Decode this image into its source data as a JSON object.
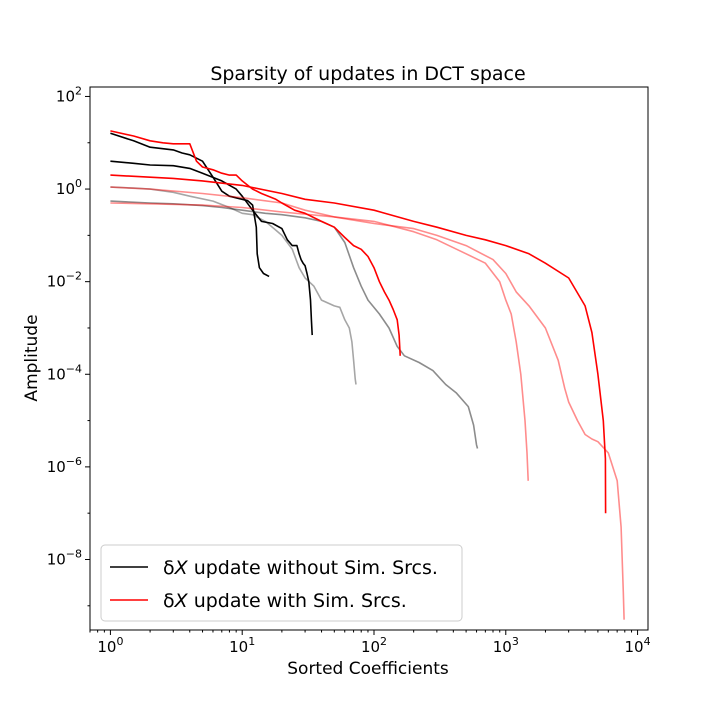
{
  "chart_data": {
    "type": "line",
    "title": "Sparsity of updates in DCT space",
    "xlabel": "Sorted Coefficients",
    "ylabel": "Amplitude",
    "xscale": "log",
    "yscale": "log",
    "xlim": [
      0.7,
      12000
    ],
    "ylim": [
      3e-10,
      160
    ],
    "xticks": [
      {
        "value": 1,
        "base": "10",
        "exp": "0"
      },
      {
        "value": 10,
        "base": "10",
        "exp": "1"
      },
      {
        "value": 100,
        "base": "10",
        "exp": "2"
      },
      {
        "value": 1000,
        "base": "10",
        "exp": "3"
      },
      {
        "value": 10000,
        "base": "10",
        "exp": "4"
      }
    ],
    "yticks": [
      {
        "value": 1e-08,
        "base": "10",
        "exp": "−8"
      },
      {
        "value": 1e-06,
        "base": "10",
        "exp": "−6"
      },
      {
        "value": 0.0001,
        "base": "10",
        "exp": "−4"
      },
      {
        "value": 0.01,
        "base": "10",
        "exp": "−2"
      },
      {
        "value": 1,
        "base": "10",
        "exp": "0"
      },
      {
        "value": 100,
        "base": "10",
        "exp": "2"
      }
    ],
    "grid": false,
    "legend": {
      "placement": "lower-left",
      "entries": [
        {
          "prefix": "δ",
          "symbol": "X",
          "text": " update without Sim. Srcs.",
          "color": "#000000"
        },
        {
          "prefix": "δ",
          "symbol": "X",
          "text": " update with Sim. Srcs.",
          "color": "#ff0000"
        }
      ]
    },
    "series": [
      {
        "color": "#000000",
        "opacity": 1.0,
        "points": [
          [
            1,
            16
          ],
          [
            1.5,
            11
          ],
          [
            2,
            8
          ],
          [
            3,
            7
          ],
          [
            3.5,
            6
          ],
          [
            4,
            5.5
          ],
          [
            5,
            4
          ],
          [
            6,
            1.8
          ],
          [
            7,
            0.9
          ],
          [
            8,
            0.7
          ],
          [
            10,
            0.6
          ],
          [
            11,
            0.56
          ],
          [
            12,
            0.45
          ],
          [
            12.8,
            0.15
          ],
          [
            13,
            0.04
          ],
          [
            13.5,
            0.02
          ],
          [
            14.5,
            0.015
          ],
          [
            16,
            0.013
          ]
        ]
      },
      {
        "color": "#000000",
        "opacity": 1.0,
        "points": [
          [
            1,
            4
          ],
          [
            1.5,
            3.6
          ],
          [
            2,
            3.3
          ],
          [
            3,
            3.2
          ],
          [
            4,
            2.8
          ],
          [
            5,
            2.2
          ],
          [
            7,
            1.5
          ],
          [
            9,
            1
          ],
          [
            10,
            0.7
          ],
          [
            12,
            0.35
          ],
          [
            14,
            0.2
          ],
          [
            17,
            0.18
          ],
          [
            20,
            0.14
          ],
          [
            22,
            0.08
          ],
          [
            24,
            0.06
          ],
          [
            26,
            0.06
          ],
          [
            27,
            0.04
          ],
          [
            28,
            0.03
          ],
          [
            29,
            0.025
          ],
          [
            30,
            0.022
          ],
          [
            31,
            0.015
          ],
          [
            32,
            0.01
          ],
          [
            33,
            0.004
          ],
          [
            33.5,
            0.0015
          ],
          [
            34,
            0.0007
          ]
        ]
      },
      {
        "color": "#000000",
        "opacity": 0.45,
        "points": [
          [
            1,
            0.55
          ],
          [
            2,
            0.5
          ],
          [
            3,
            0.48
          ],
          [
            5,
            0.44
          ],
          [
            7,
            0.4
          ],
          [
            10,
            0.35
          ],
          [
            15,
            0.3
          ],
          [
            20,
            0.28
          ],
          [
            30,
            0.24
          ],
          [
            40,
            0.2
          ],
          [
            50,
            0.15
          ],
          [
            60,
            0.07
          ],
          [
            70,
            0.02
          ],
          [
            80,
            0.008
          ],
          [
            90,
            0.004
          ],
          [
            110,
            0.002
          ],
          [
            130,
            0.001
          ],
          [
            150,
            0.0004
          ],
          [
            170,
            0.00025
          ],
          [
            220,
            0.00018
          ],
          [
            280,
            0.00012
          ],
          [
            350,
            6e-05
          ],
          [
            420,
            4e-05
          ],
          [
            520,
            2e-05
          ],
          [
            570,
            8e-06
          ],
          [
            600,
            3e-06
          ],
          [
            610,
            2.5e-06
          ]
        ]
      },
      {
        "color": "#000000",
        "opacity": 0.35,
        "points": [
          [
            1,
            1.1
          ],
          [
            1.5,
            1.05
          ],
          [
            2,
            1.0
          ],
          [
            3,
            0.85
          ],
          [
            4,
            0.7
          ],
          [
            6,
            0.55
          ],
          [
            8,
            0.4
          ],
          [
            10,
            0.3
          ],
          [
            12,
            0.28
          ],
          [
            15,
            0.2
          ],
          [
            18,
            0.13
          ],
          [
            20,
            0.1
          ],
          [
            24,
            0.05
          ],
          [
            27,
            0.02
          ],
          [
            30,
            0.012
          ],
          [
            35,
            0.008
          ],
          [
            40,
            0.004
          ],
          [
            50,
            0.003
          ],
          [
            55,
            0.0028
          ],
          [
            60,
            0.0015
          ],
          [
            65,
            0.001
          ],
          [
            68,
            0.0005
          ],
          [
            70,
            0.0002
          ],
          [
            72,
            8e-05
          ],
          [
            73,
            6e-05
          ]
        ]
      },
      {
        "color": "#ff0000",
        "opacity": 1.0,
        "points": [
          [
            1,
            18
          ],
          [
            1.5,
            14
          ],
          [
            2,
            11
          ],
          [
            2.5,
            10
          ],
          [
            3,
            9.5
          ],
          [
            4,
            9.5
          ],
          [
            4.5,
            4
          ],
          [
            5,
            3
          ],
          [
            6,
            2.6
          ],
          [
            7,
            2.2
          ],
          [
            8,
            2
          ],
          [
            9,
            2
          ],
          [
            10,
            1.5
          ],
          [
            12,
            1
          ],
          [
            14,
            0.8
          ],
          [
            18,
            0.6
          ],
          [
            20,
            0.5
          ],
          [
            25,
            0.35
          ],
          [
            30,
            0.3
          ],
          [
            40,
            0.2
          ],
          [
            50,
            0.15
          ],
          [
            60,
            0.09
          ],
          [
            70,
            0.06
          ],
          [
            80,
            0.05
          ],
          [
            90,
            0.035
          ],
          [
            100,
            0.02
          ],
          [
            110,
            0.01
          ],
          [
            120,
            0.006
          ],
          [
            130,
            0.004
          ],
          [
            140,
            0.0025
          ],
          [
            150,
            0.0015
          ],
          [
            155,
            0.0007
          ],
          [
            158,
            0.00025
          ]
        ]
      },
      {
        "color": "#ff0000",
        "opacity": 1.0,
        "points": [
          [
            1,
            2
          ],
          [
            2,
            1.8
          ],
          [
            3,
            1.7
          ],
          [
            5,
            1.5
          ],
          [
            10,
            1.2
          ],
          [
            20,
            0.8
          ],
          [
            30,
            0.6
          ],
          [
            50,
            0.5
          ],
          [
            100,
            0.35
          ],
          [
            200,
            0.2
          ],
          [
            300,
            0.15
          ],
          [
            500,
            0.1
          ],
          [
            700,
            0.08
          ],
          [
            1000,
            0.06
          ],
          [
            1500,
            0.04
          ],
          [
            2000,
            0.025
          ],
          [
            3000,
            0.012
          ],
          [
            4000,
            0.003
          ],
          [
            4500,
            0.0008
          ],
          [
            5000,
            0.0001
          ],
          [
            5500,
            1e-05
          ],
          [
            5700,
            1.5e-06
          ],
          [
            5720,
            1e-07
          ]
        ]
      },
      {
        "color": "#ff0000",
        "opacity": 0.45,
        "points": [
          [
            1,
            1.1
          ],
          [
            2,
            1.0
          ],
          [
            5,
            0.8
          ],
          [
            10,
            0.65
          ],
          [
            20,
            0.5
          ],
          [
            30,
            0.35
          ],
          [
            50,
            0.25
          ],
          [
            100,
            0.2
          ],
          [
            200,
            0.12
          ],
          [
            300,
            0.08
          ],
          [
            500,
            0.04
          ],
          [
            700,
            0.025
          ],
          [
            900,
            0.01
          ],
          [
            1000,
            0.004
          ],
          [
            1100,
            0.002
          ],
          [
            1200,
            0.0005
          ],
          [
            1300,
            0.0001
          ],
          [
            1400,
            1e-05
          ],
          [
            1450,
            2e-06
          ],
          [
            1480,
            5e-07
          ]
        ]
      },
      {
        "color": "#ff0000",
        "opacity": 0.45,
        "points": [
          [
            1,
            0.5
          ],
          [
            2,
            0.48
          ],
          [
            5,
            0.45
          ],
          [
            10,
            0.4
          ],
          [
            20,
            0.32
          ],
          [
            50,
            0.25
          ],
          [
            100,
            0.18
          ],
          [
            200,
            0.14
          ],
          [
            300,
            0.1
          ],
          [
            500,
            0.06
          ],
          [
            800,
            0.03
          ],
          [
            1000,
            0.015
          ],
          [
            1200,
            0.006
          ],
          [
            1500,
            0.003
          ],
          [
            2000,
            0.001
          ],
          [
            2500,
            0.0002
          ],
          [
            2800,
            5e-05
          ],
          [
            3000,
            2.5e-05
          ],
          [
            3500,
            1e-05
          ],
          [
            4000,
            5e-06
          ],
          [
            4500,
            4e-06
          ],
          [
            5000,
            3.5e-06
          ],
          [
            6000,
            2e-06
          ],
          [
            7000,
            5e-07
          ],
          [
            7500,
            5e-08
          ],
          [
            7800,
            2e-09
          ],
          [
            7900,
            5e-10
          ]
        ]
      }
    ]
  }
}
